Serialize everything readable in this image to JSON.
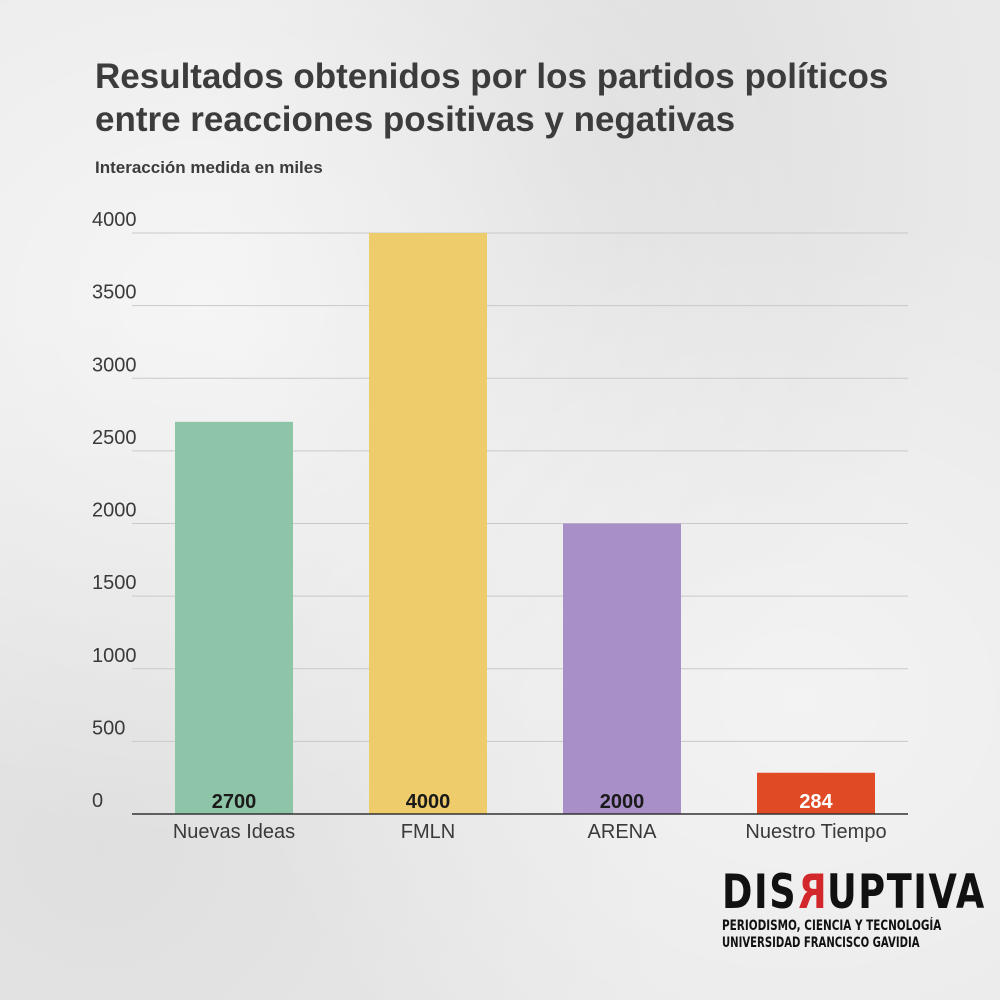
{
  "title": "Resultados obtenidos por los partidos políticos entre reacciones positivas y negativas",
  "subtitle": "Interacción medida en miles",
  "chart_data": {
    "type": "bar",
    "categories": [
      "Nuevas Ideas",
      "FMLN",
      "ARENA",
      "Nuestro Tiempo"
    ],
    "values": [
      2700,
      4000,
      2000,
      284
    ],
    "value_labels": [
      "2700",
      "4000",
      "2000",
      "284"
    ],
    "bar_colors": [
      "#8ec4a8",
      "#eecb6b",
      "#a98fc8",
      "#e04a25"
    ],
    "value_label_colors": [
      "#1a1a1a",
      "#1a1a1a",
      "#1a1a1a",
      "#ffffff"
    ],
    "ylim": [
      0,
      4000
    ],
    "yticks": [
      0,
      500,
      1000,
      1500,
      2000,
      2500,
      3000,
      3500,
      4000
    ],
    "ytick_labels": [
      "0",
      "500",
      "1000",
      "1500",
      "2000",
      "2500",
      "3000",
      "3500",
      "4000"
    ],
    "grid": true,
    "xlabel": "",
    "ylabel": ""
  },
  "logo": {
    "word_pre": "DIS",
    "word_rev": "R",
    "word_post": "UPTIVA",
    "line1": "PERIODISMO, CIENCIA Y TECNOLOGÍA",
    "line2": "UNIVERSIDAD FRANCISCO GAVIDIA",
    "accent_color": "#d3282b"
  }
}
